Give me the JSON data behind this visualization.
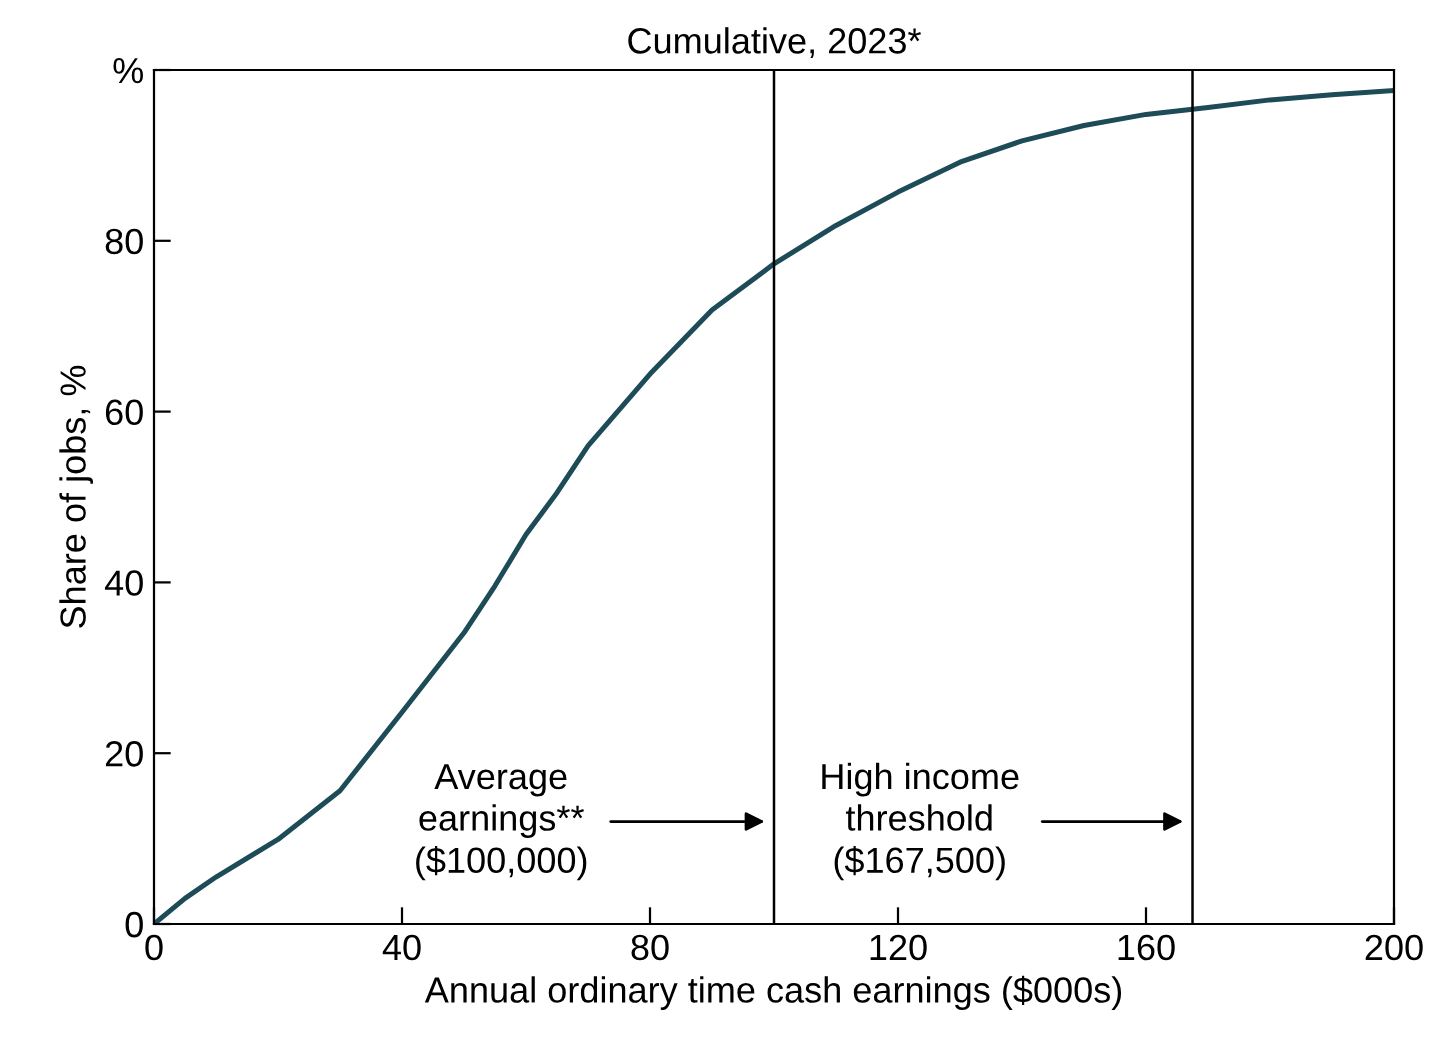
{
  "chart_data": {
    "type": "line",
    "title": "Cumulative, 2023*",
    "xlabel": "Annual ordinary time cash earnings ($000s)",
    "ylabel": "Share of jobs, %",
    "x": [
      0,
      5,
      10,
      20,
      30,
      40,
      50,
      55,
      60,
      65,
      70,
      80,
      90,
      100,
      110,
      120,
      130,
      140,
      150,
      160,
      170,
      180,
      190,
      200
    ],
    "series": [
      {
        "color": "#1d4b57",
        "values": [
          0,
          3,
          5.5,
          9.9,
          15.6,
          24.8,
          34.1,
          39.6,
          45.6,
          50.5,
          56,
          64.4,
          71.9,
          77.3,
          81.8,
          85.7,
          89.2,
          91.7,
          93.5,
          94.8,
          95.6,
          96.5,
          97.1,
          97.6
        ]
      }
    ],
    "xlim": [
      0,
      200
    ],
    "xticks": [
      0,
      40,
      80,
      120,
      160,
      200
    ],
    "ylim": [
      0,
      100
    ],
    "yticks": [
      0,
      20,
      40,
      60,
      80,
      {
        "value": 100,
        "label": "%"
      }
    ],
    "ref_lines": [
      {
        "axis": "x",
        "value": 100,
        "color": "#000000"
      },
      {
        "axis": "x",
        "value": 167.5,
        "color": "#000000"
      }
    ],
    "annotations": [
      "Average\nearnings**\n($100,000)",
      "High income\nthreshold\n($167,500)"
    ],
    "grid": false,
    "legend": false,
    "marker": "none",
    "line_style": "solid"
  }
}
